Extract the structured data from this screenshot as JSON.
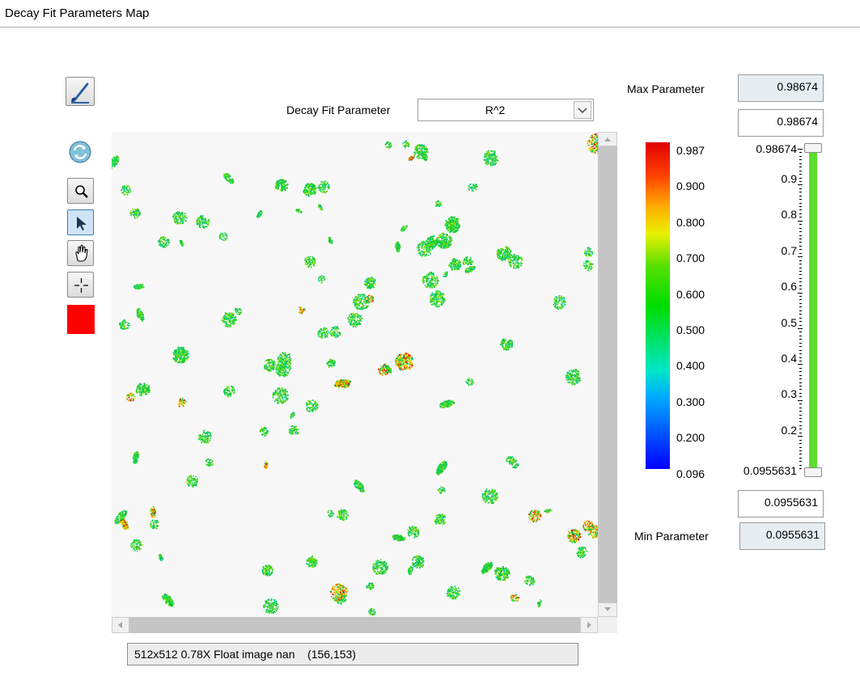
{
  "window": {
    "title": "Decay Fit Parameters Map"
  },
  "toolbar": {
    "tools": [
      {
        "name": "paint-brush",
        "icon": "paint-brush-icon"
      },
      {
        "name": "refresh",
        "icon": "refresh-icon"
      },
      {
        "name": "zoom",
        "icon": "magnifier-icon"
      },
      {
        "name": "pointer",
        "icon": "arrow-pointer-icon",
        "active": true
      },
      {
        "name": "pan",
        "icon": "hand-icon"
      },
      {
        "name": "crosshair",
        "icon": "crosshair-icon"
      }
    ],
    "color_swatch": "#ff0000"
  },
  "parameter_select": {
    "label": "Decay Fit Parameter",
    "value": "R^2"
  },
  "status_bar": {
    "text": "512x512 0.78X Float image nan    (156,153)"
  },
  "colorbar": {
    "labels": [
      "0.987",
      "0.900",
      "0.800",
      "0.700",
      "0.600",
      "0.500",
      "0.400",
      "0.300",
      "0.200",
      "0.096"
    ],
    "colors": [
      "#0000ff",
      "#00aaff",
      "#00dd00",
      "#e8f000",
      "#ff4000",
      "#e00000"
    ]
  },
  "range": {
    "max_label": "Max Parameter",
    "max_readonly": "0.98674",
    "max_input": "0.98674",
    "min_label": "Min Parameter",
    "min_readonly": "0.0955631",
    "min_input": "0.0955631",
    "slider_top_label": "0.98674",
    "slider_bottom_label": "0.0955631",
    "scale_labels": [
      "0.9",
      "0.8",
      "0.7",
      "0.6",
      "0.5",
      "0.4",
      "0.3",
      "0.2"
    ],
    "slider_color": "#5cdf2a"
  }
}
